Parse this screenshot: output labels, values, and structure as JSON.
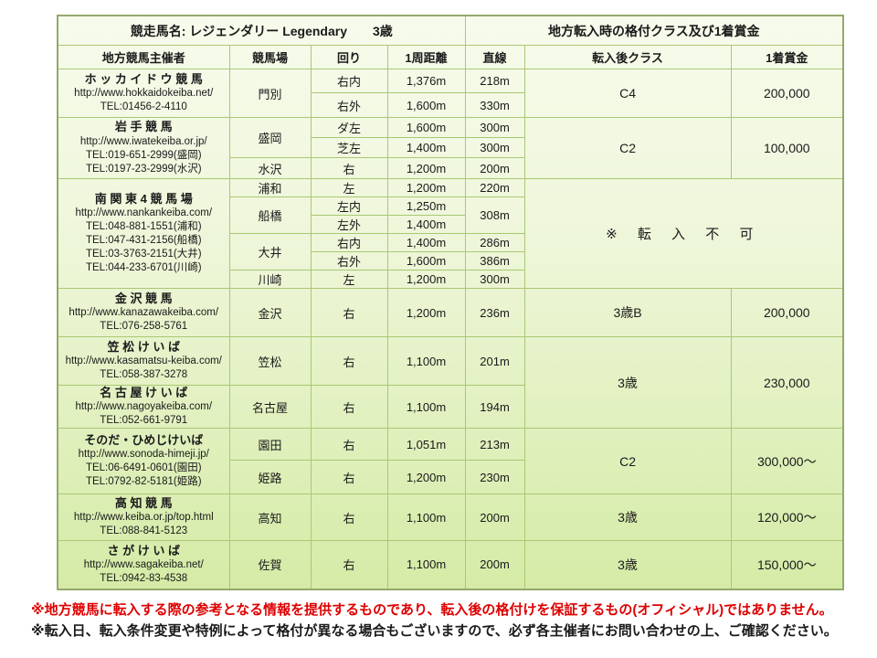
{
  "header": {
    "title_left": "競走馬名: レジェンダリー Legendary　　3歳",
    "title_right": "地方転入時の格付クラス及び1着賞金"
  },
  "table": {
    "columns": [
      "地方競馬主催者",
      "競馬場",
      "回り",
      "1周距離",
      "直線",
      "転入後クラス",
      "1着賞金"
    ],
    "rows": [
      {
        "h": 26,
        "cells": [
          {
            "k": "organizer",
            "rs": 2,
            "name": "ホ ッ カ イ ド ウ 競 馬",
            "url": "http://www.hokkaidokeiba.net/",
            "tels": [
              "TEL:01456-2-4110"
            ]
          },
          {
            "k": "track",
            "rs": 2,
            "t": "門別"
          },
          {
            "k": "turn",
            "t": "右内"
          },
          {
            "k": "lap",
            "t": "1,376m"
          },
          {
            "k": "straight",
            "t": "218m"
          },
          {
            "k": "class",
            "rs": 2,
            "t": "C4"
          },
          {
            "k": "prize",
            "rs": 2,
            "t": "200,000"
          }
        ]
      },
      {
        "h": 27,
        "cells": [
          {
            "k": "turn",
            "t": "右外"
          },
          {
            "k": "lap",
            "t": "1,600m"
          },
          {
            "k": "straight",
            "t": "330m"
          }
        ]
      },
      {
        "h": 22,
        "cells": [
          {
            "k": "organizer",
            "rs": 3,
            "name": "岩 手 競 馬",
            "url": "http://www.iwatekeiba.or.jp/",
            "tels": [
              "TEL:019-651-2999(盛岡)",
              "TEL:0197-23-2999(水沢)"
            ]
          },
          {
            "k": "track",
            "rs": 2,
            "t": "盛岡"
          },
          {
            "k": "turn",
            "t": "ダ左"
          },
          {
            "k": "lap",
            "t": "1,600m"
          },
          {
            "k": "straight",
            "t": "300m"
          },
          {
            "k": "class",
            "rs": 3,
            "t": "C2"
          },
          {
            "k": "prize",
            "rs": 3,
            "t": "100,000"
          }
        ]
      },
      {
        "h": 22,
        "cells": [
          {
            "k": "turn",
            "t": "芝左"
          },
          {
            "k": "lap",
            "t": "1,400m"
          },
          {
            "k": "straight",
            "t": "300m"
          }
        ]
      },
      {
        "h": 23,
        "cells": [
          {
            "k": "track",
            "t": "水沢"
          },
          {
            "k": "turn",
            "t": "右"
          },
          {
            "k": "lap",
            "t": "1,200m"
          },
          {
            "k": "straight",
            "t": "200m"
          }
        ]
      },
      {
        "h": 19,
        "cells": [
          {
            "k": "organizer",
            "rs": 6,
            "name": "南 関 東 4 競 馬 場",
            "url": "http://www.nankankeiba.com/",
            "tels": [
              "TEL:048-881-1551(浦和)",
              "TEL:047-431-2156(船橋)",
              "TEL:03-3763-2151(大井)",
              "TEL:044-233-6701(川崎)"
            ]
          },
          {
            "k": "track",
            "t": "浦和"
          },
          {
            "k": "turn",
            "t": "左"
          },
          {
            "k": "lap",
            "t": "1,200m"
          },
          {
            "k": "straight",
            "t": "220m"
          },
          {
            "k": "noentry",
            "rs": 6,
            "cs": 2,
            "t": "※ 転 入 不 可"
          }
        ]
      },
      {
        "h": 19,
        "cells": [
          {
            "k": "track",
            "rs": 2,
            "t": "船橋"
          },
          {
            "k": "turn",
            "t": "左内"
          },
          {
            "k": "lap",
            "t": "1,250m"
          },
          {
            "k": "straight",
            "rs": 2,
            "t": "308m"
          }
        ]
      },
      {
        "h": 19,
        "cells": [
          {
            "k": "turn",
            "t": "左外"
          },
          {
            "k": "lap",
            "t": "1,400m"
          }
        ]
      },
      {
        "h": 19,
        "cells": [
          {
            "k": "track",
            "rs": 2,
            "t": "大井"
          },
          {
            "k": "turn",
            "t": "右内"
          },
          {
            "k": "lap",
            "t": "1,400m"
          },
          {
            "k": "straight",
            "t": "286m"
          }
        ]
      },
      {
        "h": 19,
        "cells": [
          {
            "k": "turn",
            "t": "右外"
          },
          {
            "k": "lap",
            "t": "1,600m"
          },
          {
            "k": "straight",
            "t": "386m"
          }
        ]
      },
      {
        "h": 19,
        "cells": [
          {
            "k": "track",
            "t": "川崎"
          },
          {
            "k": "turn",
            "t": "左"
          },
          {
            "k": "lap",
            "t": "1,200m"
          },
          {
            "k": "straight",
            "t": "300m"
          }
        ]
      },
      {
        "h": 53,
        "cells": [
          {
            "k": "organizer",
            "name": "金 沢 競 馬",
            "url": "http://www.kanazawakeiba.com/",
            "tels": [
              "TEL:076-258-5761"
            ]
          },
          {
            "k": "track",
            "t": "金沢"
          },
          {
            "k": "turn",
            "t": "右"
          },
          {
            "k": "lap",
            "t": "1,200m"
          },
          {
            "k": "straight",
            "t": "236m"
          },
          {
            "k": "class",
            "t": "3歳B"
          },
          {
            "k": "prize",
            "t": "200,000"
          }
        ]
      },
      {
        "h": 53,
        "cells": [
          {
            "k": "organizer",
            "name": "笠 松 け い ば",
            "url": "http://www.kasamatsu-keiba.com/",
            "tels": [
              "TEL:058-387-3278"
            ]
          },
          {
            "k": "track",
            "t": "笠松"
          },
          {
            "k": "turn",
            "t": "右"
          },
          {
            "k": "lap",
            "t": "1,100m"
          },
          {
            "k": "straight",
            "t": "201m"
          },
          {
            "k": "class",
            "rs": 2,
            "t": "3歳"
          },
          {
            "k": "prize",
            "rs": 2,
            "t": "230,000"
          }
        ]
      },
      {
        "h": 43,
        "cells": [
          {
            "k": "organizer",
            "name": "名 古 屋 け い ば",
            "url": "http://www.nagoyakeiba.com/",
            "tels": [
              "TEL:052-661-9791"
            ]
          },
          {
            "k": "track",
            "t": "名古屋"
          },
          {
            "k": "turn",
            "t": "右"
          },
          {
            "k": "lap",
            "t": "1,100m"
          },
          {
            "k": "straight",
            "t": "194m"
          }
        ]
      },
      {
        "h": 35,
        "cells": [
          {
            "k": "organizer",
            "rs": 2,
            "name": "そのだ・ひめじけいば",
            "url": "http://www.sonoda-himeji.jp/",
            "tels": [
              "TEL:06-6491-0601(園田)",
              "TEL:0792-82-5181(姫路)"
            ]
          },
          {
            "k": "track",
            "t": "園田"
          },
          {
            "k": "turn",
            "t": "右"
          },
          {
            "k": "lap",
            "t": "1,051m"
          },
          {
            "k": "straight",
            "t": "213m"
          },
          {
            "k": "class",
            "rs": 2,
            "t": "C2"
          },
          {
            "k": "prize",
            "rs": 2,
            "t": "300,000～"
          }
        ]
      },
      {
        "h": 37,
        "cells": [
          {
            "k": "track",
            "t": "姫路"
          },
          {
            "k": "turn",
            "t": "右"
          },
          {
            "k": "lap",
            "t": "1,200m"
          },
          {
            "k": "straight",
            "t": "230m"
          }
        ]
      },
      {
        "h": 51,
        "cells": [
          {
            "k": "organizer",
            "name": "高 知 競 馬",
            "url": "http://www.keiba.or.jp/top.html",
            "tels": [
              "TEL:088-841-5123"
            ]
          },
          {
            "k": "track",
            "t": "高知"
          },
          {
            "k": "turn",
            "t": "右"
          },
          {
            "k": "lap",
            "t": "1,100m"
          },
          {
            "k": "straight",
            "t": "200m"
          },
          {
            "k": "class",
            "t": "3歳"
          },
          {
            "k": "prize",
            "t": "120,000～"
          }
        ]
      },
      {
        "h": 53,
        "cells": [
          {
            "k": "organizer",
            "name": "さ が け い ば",
            "url": "http://www.sagakeiba.net/",
            "tels": [
              "TEL:0942-83-4538"
            ]
          },
          {
            "k": "track",
            "t": "佐賀"
          },
          {
            "k": "turn",
            "t": "右"
          },
          {
            "k": "lap",
            "t": "1,100m"
          },
          {
            "k": "straight",
            "t": "200m"
          },
          {
            "k": "class",
            "t": "3歳"
          },
          {
            "k": "prize",
            "t": "150,000～"
          }
        ]
      }
    ]
  },
  "notes": [
    {
      "text": "※地方競馬に転入する際の参考となる情報を提供するものであり、転入後の格付けを保証するもの(オフィシャル)ではありません。",
      "color": "#dd0000"
    },
    {
      "text": "※転入日、転入条件変更や特例によって格付が異なる場合もございますので、必ず各主催者にお問い合わせの上、ご確認ください。",
      "color": "#1a1a1a"
    }
  ],
  "palette": {
    "table_gradient_top": "#f7fbec",
    "table_gradient_bottom": "#d5eba6",
    "grid_line": "#a9c873",
    "outer_border": "#93a86b",
    "warning_red": "#dd0000"
  }
}
